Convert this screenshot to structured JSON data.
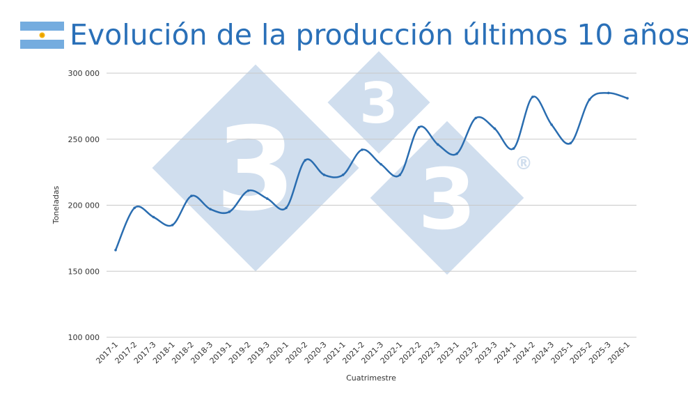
{
  "header": {
    "title": "Evolución de la producción últimos 10 años",
    "flag_icon": "argentina-flag-icon"
  },
  "watermark": {
    "icon": "333-logo-watermark",
    "text": "3",
    "registered": "®"
  },
  "chart_data": {
    "type": "line",
    "title": "Evolución de la producción últimos 10 años",
    "xlabel": "Cuatrimestre",
    "ylabel": "Toneladas",
    "ylim": [
      100000,
      300000
    ],
    "yticks": [
      100000,
      150000,
      200000,
      250000,
      300000
    ],
    "ytick_labels": [
      "100 000",
      "150 000",
      "200 000",
      "250 000",
      "300 000"
    ],
    "grid": true,
    "legend": "none",
    "colors": {
      "line": "#2a6db0",
      "grid": "#c8c8c8",
      "title": "#2a70b8"
    },
    "categories": [
      "2017-1",
      "2017-2",
      "2017-3",
      "2018-1",
      "2018-2",
      "2018-3",
      "2019-1",
      "2019-2",
      "2019-3",
      "2020-1",
      "2020-2",
      "2020-3",
      "2021-1",
      "2021-2",
      "2021-3",
      "2022-1",
      "2022-2",
      "2022-3",
      "2023-1",
      "2023-2",
      "2023-3",
      "2024-1",
      "2024-2",
      "2024-3",
      "2025-1",
      "2025-2",
      "2025-3",
      "2026-1"
    ],
    "series": [
      {
        "values": [
          166000,
          198000,
          191000,
          185000,
          207000,
          197000,
          195000,
          211000,
          205000,
          198000,
          234000,
          223000,
          223000,
          242000,
          231000,
          223000,
          259000,
          246000,
          239000,
          266000,
          258000,
          243000,
          282000,
          261000,
          247000,
          280000,
          285000,
          281000
        ]
      }
    ]
  }
}
